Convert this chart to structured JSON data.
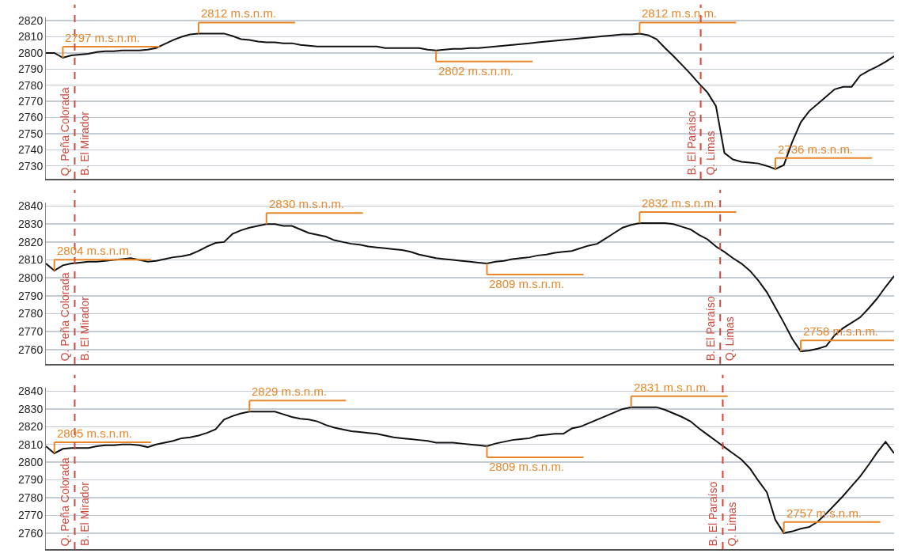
{
  "chart_data": [
    {
      "type": "line",
      "ylim": [
        2722,
        2822
      ],
      "yticks": [
        2730,
        2740,
        2750,
        2760,
        2770,
        2780,
        2790,
        2800,
        2810,
        2820
      ],
      "grid": "y",
      "tick_labels": "y",
      "categories": [
        null,
        null,
        null,
        null,
        null,
        null,
        null,
        null,
        null,
        null,
        null,
        null,
        null,
        null,
        null,
        null,
        null,
        null,
        null,
        null,
        null,
        null,
        null,
        null,
        null,
        null,
        null,
        null,
        null,
        null,
        null,
        null,
        null,
        null,
        null,
        null,
        null,
        null,
        null,
        null,
        null,
        null,
        null,
        null,
        null,
        null,
        null,
        null,
        null,
        null,
        null,
        null,
        null,
        null,
        null,
        null,
        null,
        null,
        null,
        null,
        null,
        null,
        null,
        null,
        null,
        null,
        null,
        null,
        null,
        null,
        null,
        null,
        null,
        null,
        null,
        null,
        null,
        null,
        null,
        null,
        null,
        null,
        null,
        null,
        null,
        null,
        null,
        null,
        null,
        null,
        null,
        null,
        null,
        null,
        null,
        null,
        null,
        null,
        null,
        null,
        null
      ],
      "series": [
        {
          "color": "#111111",
          "values": [
            2800,
            2800,
            2797,
            2798.5,
            2799,
            2799.5,
            2800.5,
            2801,
            2801,
            2801.5,
            2801.5,
            2801.5,
            2802,
            2803,
            2805.5,
            2808,
            2810,
            2811.5,
            2812,
            2812,
            2812,
            2812,
            2810.5,
            2808.5,
            2808,
            2807,
            2806.5,
            2806.5,
            2806,
            2806,
            2805,
            2804.5,
            2804,
            2804,
            2804,
            2804,
            2804,
            2804,
            2804,
            2804,
            2803,
            2803,
            2803,
            2803,
            2803,
            2802,
            2801.5,
            2802,
            2802.5,
            2802.5,
            2803,
            2803,
            2803.5,
            2804,
            2804.5,
            2805,
            2805.5,
            2806,
            2806.5,
            2807,
            2807.5,
            2808,
            2808.5,
            2809,
            2809.5,
            2810,
            2810.5,
            2811,
            2811.5,
            2811.5,
            2812,
            2811,
            2808.5,
            2803,
            2798,
            2792.5,
            2787,
            2781,
            2775.5,
            2767,
            2738,
            2734,
            2732.5,
            2732,
            2731.5,
            2730,
            2728,
            2730.5,
            2745,
            2757,
            2764,
            2768.5,
            2773,
            2777.5,
            2779,
            2779,
            2786,
            2789,
            2791.5,
            2794.5,
            2798
          ]
        }
      ],
      "annotations": [
        "2797 m.s.n.m.",
        "2812 m.s.n.m.",
        "2802 m.s.n.m.",
        "2812 m.s.n.m.",
        "2736 m.s.n.m.",
        "Q. Peña Colorada",
        "B. El Mirador",
        "B. El Paraíso",
        "Q. Limas"
      ]
    },
    {
      "type": "line",
      "ylim": [
        2752,
        2842
      ],
      "yticks": [
        2760,
        2770,
        2780,
        2790,
        2800,
        2810,
        2820,
        2830,
        2840
      ],
      "grid": "y",
      "tick_labels": "y",
      "categories": [
        null,
        null,
        null,
        null,
        null,
        null,
        null,
        null,
        null,
        null,
        null,
        null,
        null,
        null,
        null,
        null,
        null,
        null,
        null,
        null,
        null,
        null,
        null,
        null,
        null,
        null,
        null,
        null,
        null,
        null,
        null,
        null,
        null,
        null,
        null,
        null,
        null,
        null,
        null,
        null,
        null,
        null,
        null,
        null,
        null,
        null,
        null,
        null,
        null,
        null,
        null,
        null,
        null,
        null,
        null,
        null,
        null,
        null,
        null,
        null,
        null,
        null,
        null,
        null,
        null,
        null,
        null,
        null,
        null,
        null,
        null,
        null,
        null,
        null,
        null,
        null,
        null,
        null,
        null,
        null,
        null,
        null,
        null,
        null,
        null,
        null,
        null,
        null,
        null,
        null,
        null,
        null,
        null,
        null,
        null,
        null,
        null,
        null,
        null,
        null,
        null
      ],
      "series": [
        {
          "color": "#111111",
          "values": [
            2808,
            2804,
            2807,
            2808,
            2808.5,
            2809,
            2809,
            2809.5,
            2810,
            2810.5,
            2811,
            2810,
            2809,
            2809.5,
            2810.5,
            2811.5,
            2812,
            2813,
            2815,
            2817.5,
            2819.5,
            2820,
            2824.5,
            2826.5,
            2828,
            2829,
            2830,
            2830,
            2829,
            2829,
            2827,
            2825,
            2824,
            2823,
            2821,
            2820,
            2819,
            2818.5,
            2817.5,
            2817,
            2816.5,
            2816,
            2815.5,
            2814.5,
            2813,
            2812,
            2811,
            2810.5,
            2810,
            2809.5,
            2809,
            2808.5,
            2808,
            2809,
            2809.5,
            2810.5,
            2811,
            2811.5,
            2812.5,
            2813,
            2814,
            2814.5,
            2815,
            2816.5,
            2818,
            2819,
            2822,
            2825,
            2828,
            2829.5,
            2830.5,
            2830.5,
            2830.5,
            2830.5,
            2830,
            2828.5,
            2827,
            2824,
            2821.5,
            2817.5,
            2814.5,
            2811,
            2808,
            2804,
            2798.5,
            2792,
            2783.5,
            2775,
            2766,
            2759,
            2759.5,
            2760.5,
            2762,
            2768,
            2772,
            2775,
            2778,
            2783,
            2788.5,
            2795,
            2801
          ]
        }
      ],
      "annotations": [
        "2804 m.s.n.m.",
        "2830 m.s.n.m.",
        "2809 m.s.n.m.",
        "2832 m.s.n.m.",
        "2758 m.s.n.m.",
        "Q. Peña Colorada",
        "B. El Mirador",
        "B. El Paraíso",
        "Q. Limas"
      ]
    },
    {
      "type": "line",
      "ylim": [
        2751,
        2842
      ],
      "yticks": [
        2760,
        2770,
        2780,
        2790,
        2800,
        2810,
        2820,
        2830,
        2840
      ],
      "grid": "y",
      "tick_labels": "y",
      "categories": [
        null,
        null,
        null,
        null,
        null,
        null,
        null,
        null,
        null,
        null,
        null,
        null,
        null,
        null,
        null,
        null,
        null,
        null,
        null,
        null,
        null,
        null,
        null,
        null,
        null,
        null,
        null,
        null,
        null,
        null,
        null,
        null,
        null,
        null,
        null,
        null,
        null,
        null,
        null,
        null,
        null,
        null,
        null,
        null,
        null,
        null,
        null,
        null,
        null,
        null,
        null,
        null,
        null,
        null,
        null,
        null,
        null,
        null,
        null,
        null,
        null,
        null,
        null,
        null,
        null,
        null,
        null,
        null,
        null,
        null,
        null,
        null,
        null,
        null,
        null,
        null,
        null,
        null,
        null,
        null,
        null,
        null,
        null,
        null,
        null,
        null,
        null,
        null,
        null,
        null,
        null,
        null,
        null,
        null,
        null,
        null,
        null,
        null,
        null,
        null,
        null
      ],
      "series": [
        {
          "color": "#111111",
          "values": [
            2809,
            2805,
            2807.5,
            2808,
            2808,
            2808,
            2809,
            2809.5,
            2809.5,
            2810,
            2810,
            2809.5,
            2808.5,
            2810,
            2811,
            2812,
            2813.5,
            2814,
            2815,
            2816.5,
            2818.5,
            2824,
            2826,
            2827.5,
            2828.5,
            2828.5,
            2828.5,
            2828.5,
            2827,
            2825.5,
            2824.5,
            2824,
            2823,
            2821,
            2819.5,
            2818.5,
            2817.5,
            2817,
            2816.5,
            2816,
            2815,
            2814,
            2813.5,
            2813,
            2812.5,
            2812,
            2811,
            2811,
            2811,
            2810.5,
            2810,
            2809.5,
            2809,
            2810.5,
            2811.5,
            2812.5,
            2813,
            2813.5,
            2815,
            2815.5,
            2816,
            2816,
            2819,
            2820,
            2822,
            2824,
            2826,
            2828,
            2830,
            2831,
            2831,
            2831,
            2831,
            2829.5,
            2827.5,
            2825.5,
            2823,
            2819,
            2815.5,
            2812,
            2808.5,
            2805,
            2801.5,
            2796.5,
            2789.5,
            2783,
            2767.5,
            2760,
            2761,
            2762.5,
            2763.5,
            2766.5,
            2771,
            2776,
            2781,
            2786.5,
            2792,
            2798.5,
            2805.5,
            2811.5,
            2805
          ]
        }
      ],
      "annotations": [
        "2805 m.s.n.m.",
        "2829 m.s.n.m.",
        "2809 m.s.n.m.",
        "2831 m.s.n.m.",
        "2757 m.s.n.m.",
        "Q. Peña Colorada",
        "B. El Mirador",
        "B. El Paraíso",
        "Q. Limas"
      ]
    }
  ]
}
